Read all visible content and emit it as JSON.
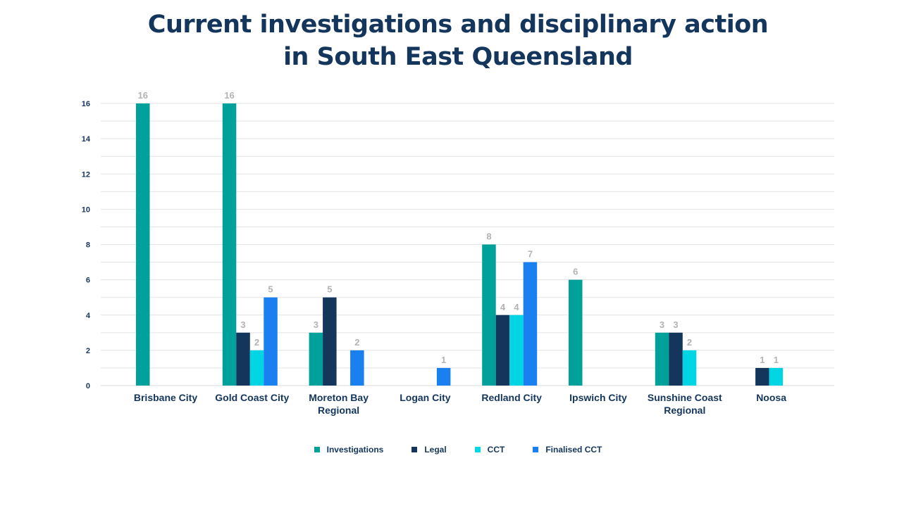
{
  "title_line1": "Current investigations and disciplinary action",
  "title_line2": "in South East Queensland",
  "chart_data": {
    "type": "bar",
    "title": "Current investigations and disciplinary action in South East Queensland",
    "categories": [
      [
        "Brisbane City"
      ],
      [
        "Gold Coast City"
      ],
      [
        "Moreton Bay",
        "Regional"
      ],
      [
        "Logan City"
      ],
      [
        "Redland City"
      ],
      [
        "Ipswich City"
      ],
      [
        "Sunshine Coast",
        "Regional"
      ],
      [
        "Noosa"
      ]
    ],
    "series": [
      {
        "name": "Investigations",
        "color": "#00a19a",
        "values": [
          16,
          16,
          3,
          null,
          8,
          6,
          3,
          null
        ]
      },
      {
        "name": "Legal",
        "color": "#14355c",
        "values": [
          null,
          3,
          5,
          null,
          4,
          null,
          3,
          1
        ]
      },
      {
        "name": "CCT",
        "color": "#00d6e3",
        "values": [
          null,
          2,
          null,
          null,
          4,
          null,
          2,
          1
        ]
      },
      {
        "name": "Finalised CCT",
        "color": "#1a80f0",
        "values": [
          null,
          5,
          2,
          1,
          7,
          null,
          null,
          null
        ]
      }
    ],
    "yticks": [
      0,
      2,
      4,
      6,
      8,
      10,
      12,
      14,
      16
    ],
    "ylim": [
      0,
      16
    ],
    "xlabel": "",
    "ylabel": "",
    "grid": true,
    "legend_position": "bottom"
  }
}
